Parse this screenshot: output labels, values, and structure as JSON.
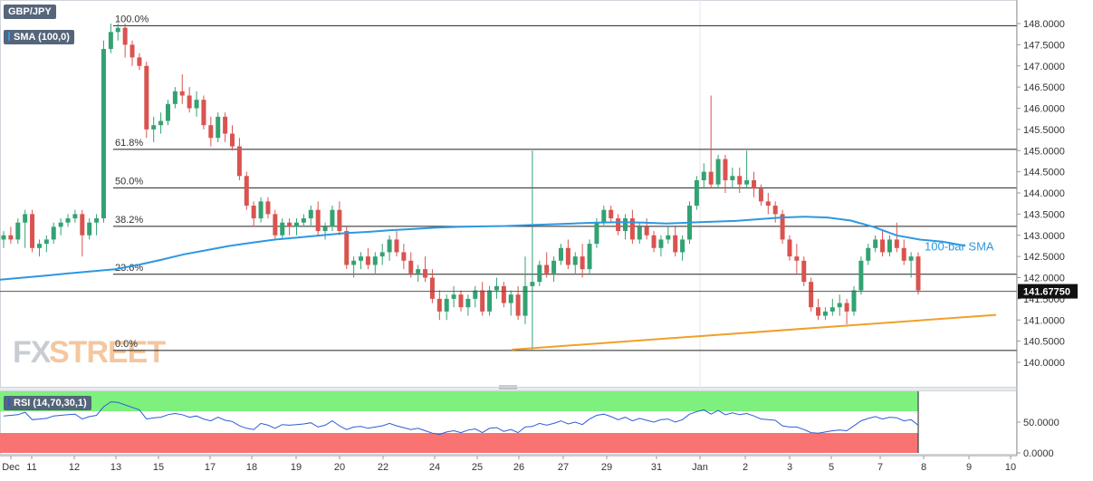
{
  "chart_data": {
    "type": "candlestick",
    "symbol": "GBP/JPY",
    "indicator_label": "SMA (100,0)",
    "brand": {
      "fx": "FX",
      "street": "STREET"
    },
    "colors": {
      "up": "#33a272",
      "down": "#d9534f",
      "sma": "#2d98e0",
      "trendline": "#f0a029",
      "rsi_line": "#2e5cd6",
      "overbought_zone": "#7ef07e",
      "oversold_zone": "#fa7373",
      "price_tag": "#111111"
    },
    "price_axis": {
      "min": 140.0,
      "max": 148.0,
      "ticks": [
        "148.0000",
        "147.5000",
        "147.0000",
        "146.5000",
        "146.0000",
        "145.5000",
        "145.0000",
        "144.5000",
        "144.0000",
        "143.5000",
        "143.0000",
        "142.5000",
        "142.0000",
        "141.5000",
        "141.0000",
        "140.5000",
        "140.0000"
      ]
    },
    "last_price": "141.67750",
    "x_ticks": [
      "Dec",
      "11",
      "12",
      "13",
      "15",
      "17",
      "18",
      "19",
      "20",
      "22",
      "24",
      "25",
      "26",
      "27",
      "29",
      "31",
      "Jan",
      "2",
      "3",
      "5",
      "7",
      "8",
      "9",
      "10"
    ],
    "fibonacci": [
      {
        "label": "100.0%",
        "price": 147.95
      },
      {
        "label": "61.8%",
        "price": 145.03
      },
      {
        "label": "50.0%",
        "price": 144.12
      },
      {
        "label": "38.2%",
        "price": 143.21
      },
      {
        "label": "23.6%",
        "price": 142.08
      },
      {
        "label": "0.0%",
        "price": 140.28
      }
    ],
    "trendline": {
      "start": [
        140.3
      ],
      "end": [
        141.12
      ]
    },
    "sma_label": "100-bar SMA",
    "sma": [
      141.95,
      142.0,
      142.05,
      142.1,
      142.15,
      142.2,
      142.3,
      142.42,
      142.55,
      142.65,
      142.75,
      142.83,
      142.9,
      142.95,
      143.0,
      143.05,
      143.08,
      143.12,
      143.15,
      143.18,
      143.2,
      143.21,
      143.22,
      143.24,
      143.26,
      143.28,
      143.3,
      143.31,
      143.3,
      143.28,
      143.3,
      143.32,
      143.34,
      143.38,
      143.42,
      143.44,
      143.42,
      143.35,
      143.2,
      143.0,
      142.9,
      142.85,
      142.75
    ],
    "candles": [
      [
        142.9,
        143.1,
        142.7,
        143.0
      ],
      [
        143.0,
        143.2,
        142.8,
        142.9
      ],
      [
        142.9,
        143.4,
        142.8,
        143.3
      ],
      [
        143.3,
        143.6,
        142.7,
        143.5
      ],
      [
        143.5,
        143.6,
        142.6,
        142.7
      ],
      [
        142.7,
        142.9,
        142.5,
        142.8
      ],
      [
        142.8,
        143.0,
        142.6,
        142.9
      ],
      [
        142.9,
        143.3,
        142.8,
        143.2
      ],
      [
        143.2,
        143.4,
        143.0,
        143.3
      ],
      [
        143.3,
        143.5,
        143.2,
        143.4
      ],
      [
        143.4,
        143.6,
        143.3,
        143.5
      ],
      [
        143.5,
        143.6,
        142.5,
        143.0
      ],
      [
        143.0,
        143.4,
        142.9,
        143.3
      ],
      [
        143.3,
        143.5,
        143.0,
        143.4
      ],
      [
        143.4,
        147.6,
        143.3,
        147.4
      ],
      [
        147.4,
        148.0,
        147.3,
        147.8
      ],
      [
        147.8,
        148.0,
        147.6,
        147.9
      ],
      [
        147.9,
        148.0,
        147.2,
        147.5
      ],
      [
        147.5,
        147.6,
        147.0,
        147.2
      ],
      [
        147.2,
        147.3,
        146.9,
        147.0
      ],
      [
        147.0,
        147.1,
        145.3,
        145.5
      ],
      [
        145.5,
        145.8,
        145.2,
        145.6
      ],
      [
        145.6,
        145.9,
        145.4,
        145.7
      ],
      [
        145.7,
        146.2,
        145.6,
        146.1
      ],
      [
        146.1,
        146.5,
        146.0,
        146.4
      ],
      [
        146.4,
        146.8,
        146.1,
        146.3
      ],
      [
        146.3,
        146.5,
        145.9,
        146.0
      ],
      [
        146.0,
        146.4,
        145.8,
        146.2
      ],
      [
        146.2,
        146.3,
        145.5,
        145.6
      ],
      [
        145.6,
        145.8,
        145.1,
        145.3
      ],
      [
        145.3,
        145.9,
        145.2,
        145.8
      ],
      [
        145.8,
        145.9,
        145.2,
        145.4
      ],
      [
        145.4,
        145.6,
        145.0,
        145.1
      ],
      [
        145.1,
        145.3,
        144.3,
        144.4
      ],
      [
        144.4,
        144.5,
        143.6,
        143.7
      ],
      [
        143.7,
        143.8,
        143.2,
        143.4
      ],
      [
        143.4,
        143.9,
        143.3,
        143.8
      ],
      [
        143.8,
        143.9,
        143.4,
        143.5
      ],
      [
        143.5,
        143.6,
        142.9,
        143.0
      ],
      [
        143.0,
        143.4,
        142.9,
        143.3
      ],
      [
        143.3,
        143.4,
        143.0,
        143.2
      ],
      [
        143.2,
        143.4,
        143.0,
        143.3
      ],
      [
        143.3,
        143.5,
        143.2,
        143.4
      ],
      [
        143.4,
        143.7,
        143.2,
        143.6
      ],
      [
        143.6,
        143.8,
        143.0,
        143.1
      ],
      [
        143.1,
        143.3,
        142.9,
        143.2
      ],
      [
        143.2,
        143.7,
        143.1,
        143.6
      ],
      [
        143.6,
        143.8,
        143.0,
        143.1
      ],
      [
        143.1,
        143.2,
        142.2,
        142.3
      ],
      [
        142.3,
        142.5,
        142.0,
        142.4
      ],
      [
        142.4,
        142.6,
        142.2,
        142.5
      ],
      [
        142.5,
        142.7,
        142.2,
        142.3
      ],
      [
        142.3,
        142.6,
        142.1,
        142.5
      ],
      [
        142.5,
        142.8,
        142.3,
        142.6
      ],
      [
        142.6,
        143.0,
        142.4,
        142.9
      ],
      [
        142.9,
        143.1,
        142.5,
        142.6
      ],
      [
        142.6,
        142.8,
        142.2,
        142.4
      ],
      [
        142.4,
        142.6,
        142.0,
        142.1
      ],
      [
        142.1,
        142.3,
        141.9,
        142.2
      ],
      [
        142.2,
        142.5,
        141.9,
        142.0
      ],
      [
        142.0,
        142.2,
        141.4,
        141.5
      ],
      [
        141.5,
        141.7,
        141.0,
        141.2
      ],
      [
        141.2,
        141.6,
        141.0,
        141.5
      ],
      [
        141.5,
        141.8,
        141.3,
        141.6
      ],
      [
        141.6,
        141.7,
        141.2,
        141.3
      ],
      [
        141.3,
        141.6,
        141.1,
        141.5
      ],
      [
        141.5,
        141.8,
        141.3,
        141.7
      ],
      [
        141.7,
        141.9,
        141.1,
        141.2
      ],
      [
        141.2,
        141.8,
        141.1,
        141.7
      ],
      [
        141.7,
        142.0,
        141.5,
        141.8
      ],
      [
        141.8,
        141.9,
        141.3,
        141.4
      ],
      [
        141.4,
        141.7,
        141.1,
        141.6
      ],
      [
        141.6,
        141.8,
        141.0,
        141.1
      ],
      [
        141.1,
        142.5,
        140.9,
        141.8
      ],
      [
        141.8,
        145.0,
        140.3,
        141.9
      ],
      [
        141.9,
        142.4,
        141.8,
        142.3
      ],
      [
        142.3,
        142.6,
        142.0,
        142.1
      ],
      [
        142.1,
        142.5,
        141.9,
        142.4
      ],
      [
        142.4,
        142.8,
        142.3,
        142.7
      ],
      [
        142.7,
        142.9,
        142.2,
        142.3
      ],
      [
        142.3,
        142.6,
        142.1,
        142.5
      ],
      [
        142.5,
        142.8,
        142.0,
        142.2
      ],
      [
        142.2,
        142.9,
        142.1,
        142.8
      ],
      [
        142.8,
        143.4,
        142.7,
        143.3
      ],
      [
        143.3,
        143.7,
        143.2,
        143.6
      ],
      [
        143.6,
        143.7,
        143.3,
        143.4
      ],
      [
        143.4,
        143.5,
        143.0,
        143.1
      ],
      [
        143.1,
        143.5,
        142.9,
        143.4
      ],
      [
        143.4,
        143.6,
        142.8,
        142.9
      ],
      [
        142.9,
        143.3,
        142.8,
        143.2
      ],
      [
        143.2,
        143.4,
        142.9,
        143.0
      ],
      [
        143.0,
        143.1,
        142.6,
        142.7
      ],
      [
        142.7,
        143.0,
        142.5,
        142.9
      ],
      [
        142.9,
        143.2,
        142.8,
        143.0
      ],
      [
        143.0,
        143.2,
        142.5,
        142.6
      ],
      [
        142.6,
        143.0,
        142.4,
        142.9
      ],
      [
        142.9,
        143.8,
        142.8,
        143.7
      ],
      [
        143.7,
        144.4,
        143.6,
        144.3
      ],
      [
        144.3,
        144.7,
        144.1,
        144.5
      ],
      [
        144.5,
        146.3,
        144.1,
        144.2
      ],
      [
        144.2,
        144.9,
        144.1,
        144.8
      ],
      [
        144.8,
        144.9,
        144.0,
        144.3
      ],
      [
        144.3,
        144.6,
        144.1,
        144.4
      ],
      [
        144.4,
        144.6,
        144.0,
        144.2
      ],
      [
        144.2,
        145.0,
        144.1,
        144.3
      ],
      [
        144.3,
        144.5,
        143.9,
        144.1
      ],
      [
        144.1,
        144.2,
        143.7,
        143.8
      ],
      [
        143.8,
        144.0,
        143.5,
        143.7
      ],
      [
        143.7,
        143.8,
        143.3,
        143.5
      ],
      [
        143.5,
        143.6,
        142.8,
        142.9
      ],
      [
        142.9,
        143.0,
        142.4,
        142.5
      ],
      [
        142.5,
        142.8,
        142.1,
        142.4
      ],
      [
        142.4,
        142.5,
        141.8,
        141.9
      ],
      [
        141.9,
        142.0,
        141.2,
        141.3
      ],
      [
        141.3,
        141.5,
        141.0,
        141.1
      ],
      [
        141.1,
        141.3,
        141.0,
        141.2
      ],
      [
        141.2,
        141.5,
        141.1,
        141.3
      ],
      [
        141.3,
        141.6,
        141.1,
        141.4
      ],
      [
        141.4,
        141.5,
        140.9,
        141.2
      ],
      [
        141.2,
        141.8,
        141.1,
        141.7
      ],
      [
        141.7,
        142.5,
        141.6,
        142.4
      ],
      [
        142.4,
        142.8,
        142.3,
        142.7
      ],
      [
        142.7,
        143.0,
        142.6,
        142.9
      ],
      [
        142.9,
        143.1,
        142.5,
        142.6
      ],
      [
        142.6,
        143.0,
        142.5,
        142.9
      ],
      [
        142.9,
        143.3,
        142.6,
        142.7
      ],
      [
        142.7,
        142.9,
        142.3,
        142.4
      ],
      [
        142.4,
        142.6,
        142.0,
        142.5
      ],
      [
        142.5,
        142.6,
        141.6,
        141.7
      ]
    ],
    "rsi": {
      "label": "RSI (14,70,30,1)",
      "min": 0,
      "max": 100,
      "overbought": 70,
      "oversold": 30,
      "ticks": [
        "50.0000",
        "0.0000"
      ],
      "values": [
        60,
        61,
        62,
        66,
        54,
        55,
        56,
        60,
        61,
        62,
        63,
        55,
        59,
        61,
        75,
        83,
        82,
        78,
        74,
        70,
        55,
        57,
        58,
        62,
        64,
        62,
        58,
        60,
        55,
        52,
        58,
        53,
        51,
        44,
        40,
        38,
        48,
        45,
        40,
        46,
        45,
        46,
        47,
        49,
        42,
        45,
        52,
        44,
        38,
        42,
        43,
        40,
        42,
        44,
        48,
        44,
        41,
        38,
        40,
        36,
        32,
        30,
        34,
        36,
        33,
        37,
        39,
        33,
        40,
        41,
        35,
        38,
        33,
        42,
        43,
        48,
        45,
        48,
        52,
        47,
        50,
        46,
        55,
        61,
        63,
        59,
        54,
        58,
        52,
        56,
        53,
        50,
        54,
        55,
        50,
        54,
        63,
        67,
        70,
        63,
        69,
        62,
        65,
        62,
        64,
        60,
        55,
        54,
        53,
        44,
        42,
        42,
        38,
        33,
        32,
        34,
        36,
        37,
        36,
        44,
        52,
        56,
        59,
        55,
        58,
        57,
        52,
        54,
        45
      ]
    }
  }
}
